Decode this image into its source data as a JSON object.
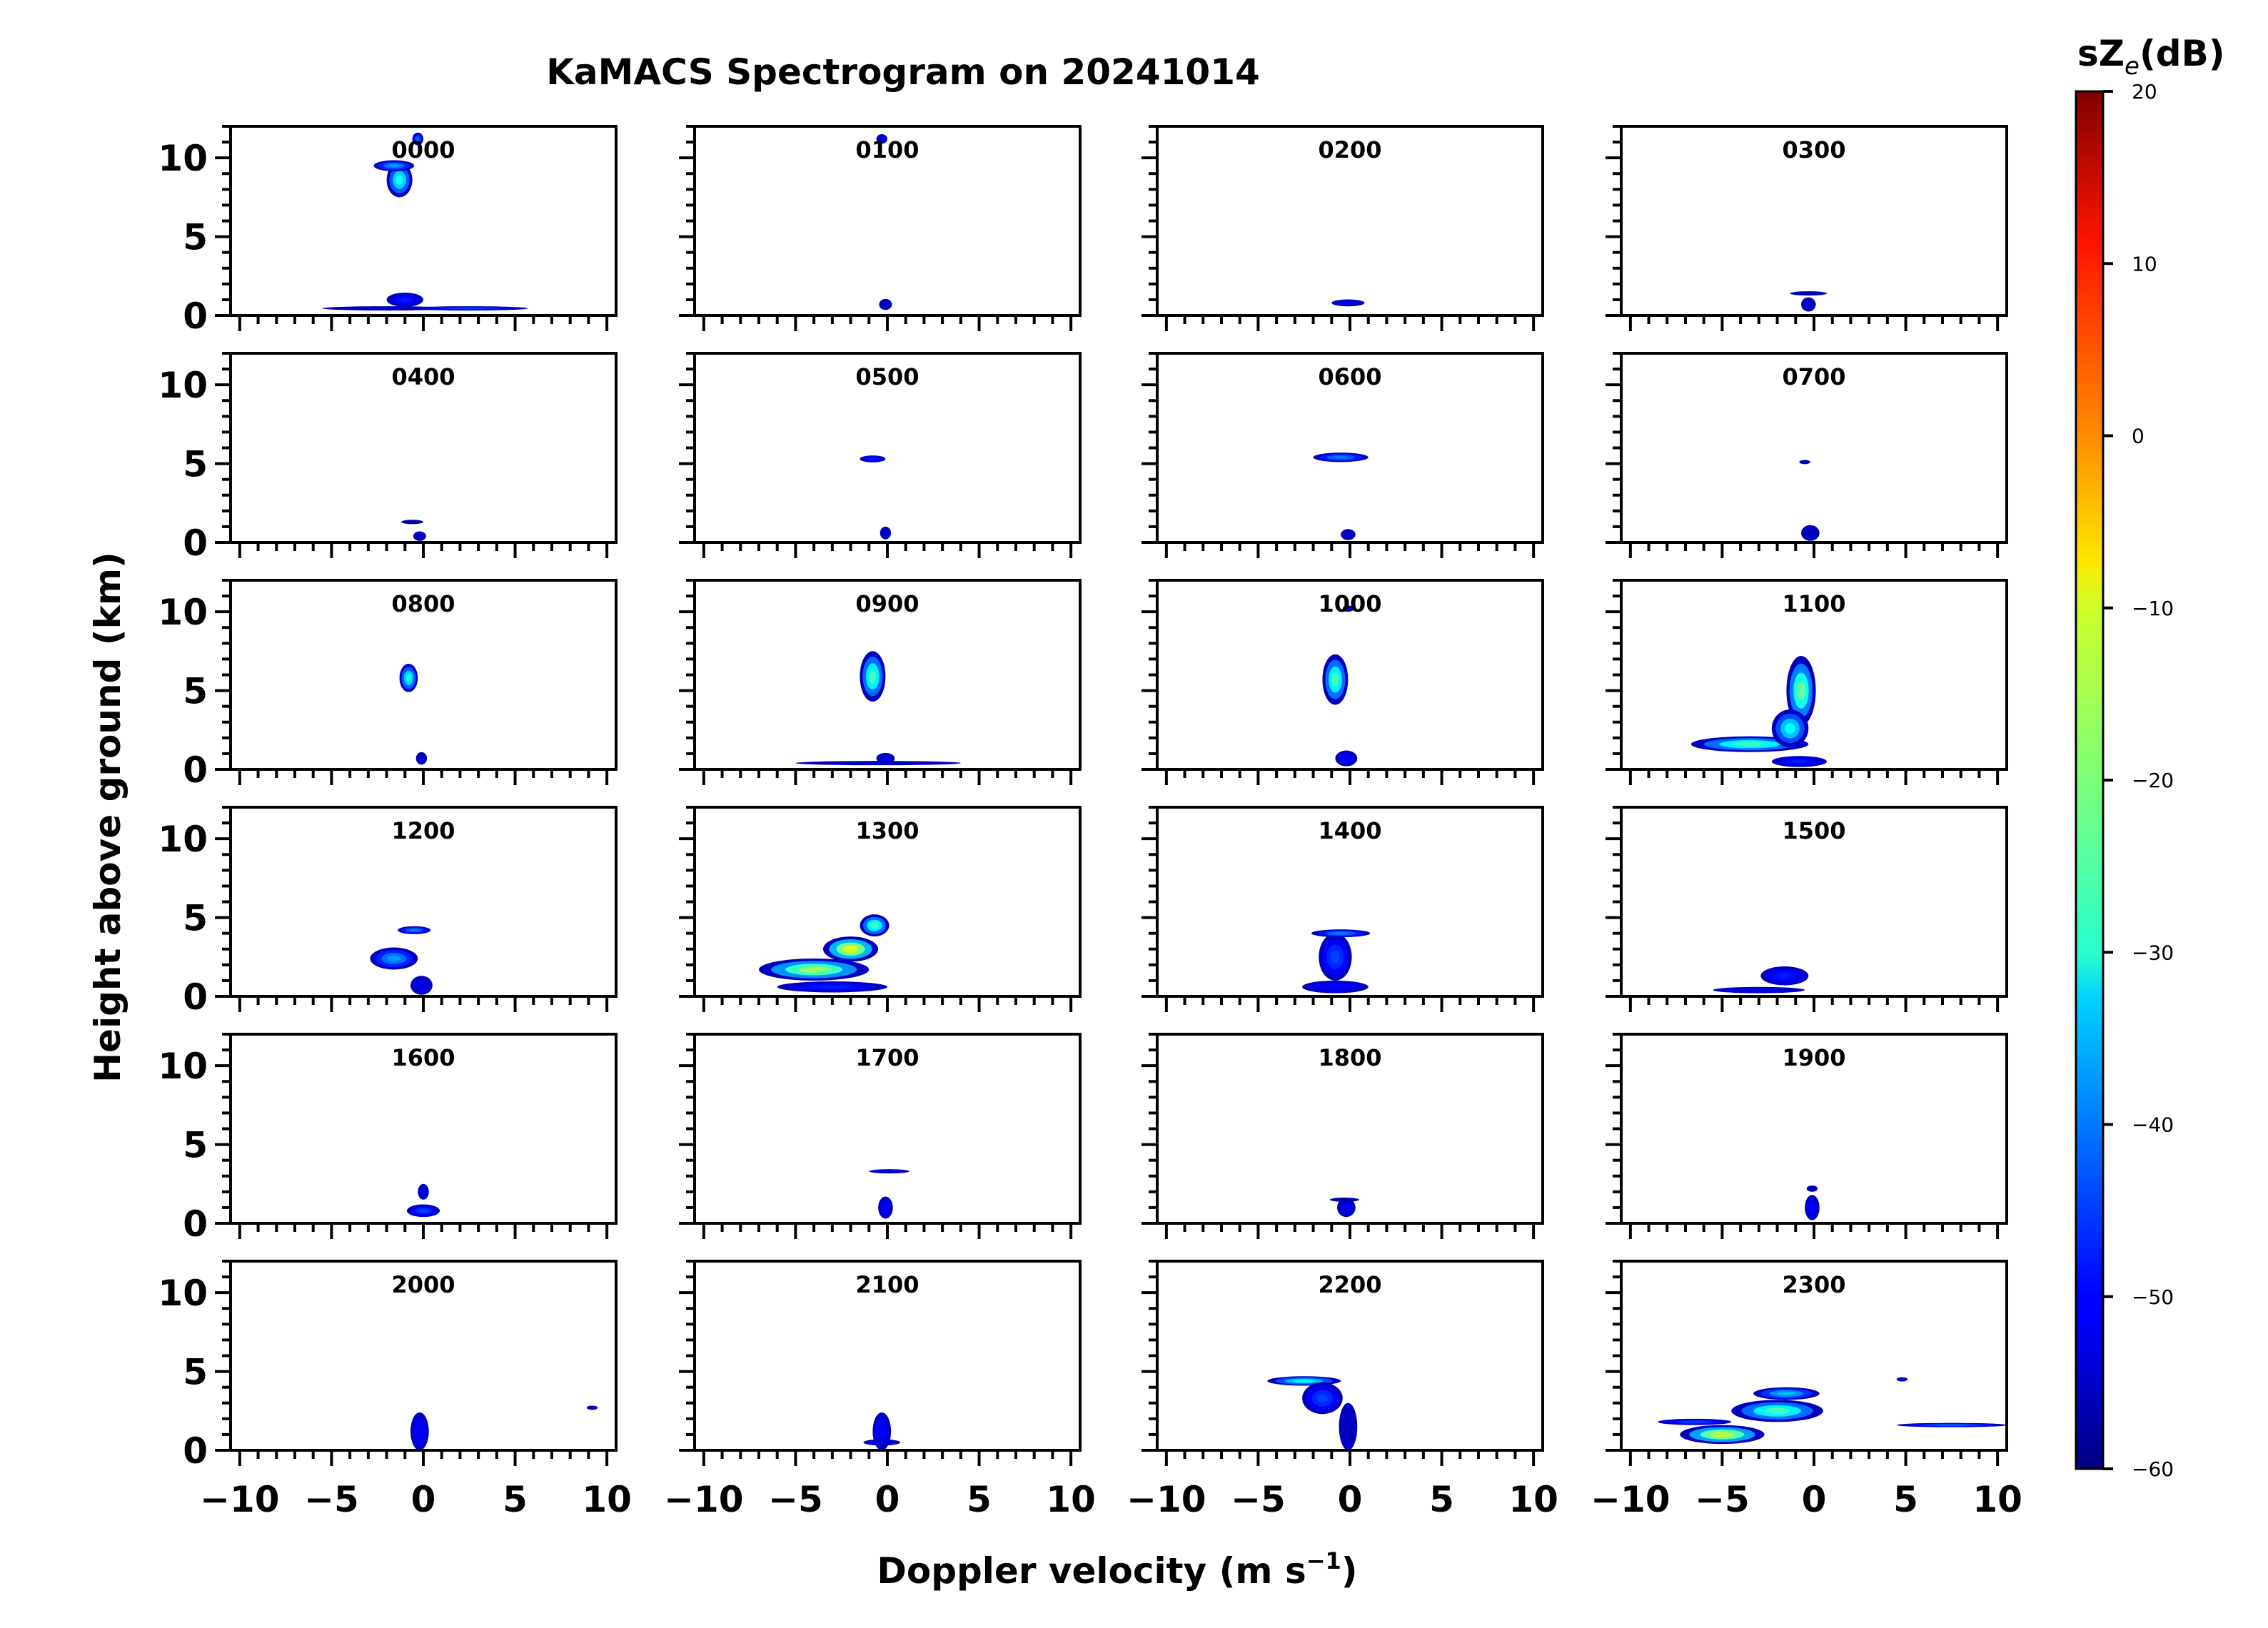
{
  "chart_data": {
    "type": "heatmap",
    "title": "KaMACS Spectrogram on 20241014",
    "xlabel": "Doppler velocity (m s",
    "xlabel_sup": "−1",
    "xlabel_end": ")",
    "ylabel": "Height above ground (km)",
    "xlim": [
      -10.5,
      10.5
    ],
    "ylim": [
      0,
      12
    ],
    "x_ticks": [
      -10,
      -5,
      0,
      5,
      10
    ],
    "x_tick_labels": [
      "−10",
      "−5",
      "0",
      "5",
      "10"
    ],
    "y_ticks": [
      0,
      5,
      10
    ],
    "y_tick_labels": [
      "0",
      "5",
      "10"
    ],
    "colorbar": {
      "label": "sZ",
      "label_sub": "e",
      "label_unit": "(dB)",
      "range": [
        -60,
        20
      ],
      "ticks": [
        20,
        10,
        0,
        -10,
        -20,
        -30,
        -40,
        -50,
        -60
      ],
      "tick_labels": [
        "20",
        "10",
        "0",
        "−10",
        "−20",
        "−30",
        "−40",
        "−50",
        "−60"
      ]
    },
    "panels": [
      {
        "label": "0000",
        "features": [
          {
            "v": -1.3,
            "h": 8.6,
            "dv": 0.7,
            "dh": 1.1,
            "z": -28
          },
          {
            "v": -1.6,
            "h": 9.5,
            "dv": 1.1,
            "dh": 0.35,
            "z": -38
          },
          {
            "v": -0.3,
            "h": 11.2,
            "dv": 0.3,
            "dh": 0.4,
            "z": -42
          },
          {
            "v": -1.0,
            "h": 1.0,
            "dv": 1.0,
            "dh": 0.45,
            "z": -48
          },
          {
            "v": -2.0,
            "h": 0.45,
            "dv": 3.5,
            "dh": 0.12,
            "z": -55
          },
          {
            "v": 2.5,
            "h": 0.45,
            "dv": 3.2,
            "dh": 0.1,
            "z": -45
          }
        ]
      },
      {
        "label": "0100",
        "features": [
          {
            "v": -0.1,
            "h": 0.7,
            "dv": 0.35,
            "dh": 0.35,
            "z": -55
          },
          {
            "v": -0.3,
            "h": 11.2,
            "dv": 0.3,
            "dh": 0.3,
            "z": -52
          }
        ]
      },
      {
        "label": "0200",
        "features": [
          {
            "v": -0.1,
            "h": 0.8,
            "dv": 0.9,
            "dh": 0.22,
            "z": -52
          }
        ]
      },
      {
        "label": "0300",
        "features": [
          {
            "v": -0.3,
            "h": 0.7,
            "dv": 0.4,
            "dh": 0.45,
            "z": -55
          },
          {
            "v": -0.3,
            "h": 1.4,
            "dv": 1.0,
            "dh": 0.08,
            "z": -58
          }
        ]
      },
      {
        "label": "0400",
        "features": [
          {
            "v": -0.2,
            "h": 0.4,
            "dv": 0.35,
            "dh": 0.3,
            "z": -55
          },
          {
            "v": -0.6,
            "h": 1.3,
            "dv": 0.6,
            "dh": 0.08,
            "z": -58
          }
        ]
      },
      {
        "label": "0500",
        "features": [
          {
            "v": -0.8,
            "h": 5.3,
            "dv": 0.7,
            "dh": 0.22,
            "z": -48
          },
          {
            "v": -0.1,
            "h": 0.6,
            "dv": 0.3,
            "dh": 0.4,
            "z": -55
          }
        ]
      },
      {
        "label": "0600",
        "features": [
          {
            "v": -0.5,
            "h": 5.4,
            "dv": 1.5,
            "dh": 0.3,
            "z": -40
          },
          {
            "v": -0.1,
            "h": 0.5,
            "dv": 0.4,
            "dh": 0.35,
            "z": -55
          }
        ]
      },
      {
        "label": "0700",
        "features": [
          {
            "v": -0.5,
            "h": 5.1,
            "dv": 0.3,
            "dh": 0.1,
            "z": -55
          },
          {
            "v": -0.2,
            "h": 0.6,
            "dv": 0.5,
            "dh": 0.5,
            "z": -55
          }
        ]
      },
      {
        "label": "0800",
        "features": [
          {
            "v": -0.8,
            "h": 5.8,
            "dv": 0.5,
            "dh": 0.9,
            "z": -28
          },
          {
            "v": -0.1,
            "h": 0.7,
            "dv": 0.3,
            "dh": 0.4,
            "z": -55
          }
        ]
      },
      {
        "label": "0900",
        "features": [
          {
            "v": -0.8,
            "h": 5.9,
            "dv": 0.7,
            "dh": 1.6,
            "z": -25
          },
          {
            "v": -0.1,
            "h": 0.7,
            "dv": 0.5,
            "dh": 0.35,
            "z": -52
          },
          {
            "v": -0.5,
            "h": 0.4,
            "dv": 4.5,
            "dh": 0.08,
            "z": -55
          }
        ]
      },
      {
        "label": "1000",
        "features": [
          {
            "v": -0.8,
            "h": 5.7,
            "dv": 0.7,
            "dh": 1.6,
            "z": -25
          },
          {
            "v": -0.1,
            "h": 10.2,
            "dv": 0.3,
            "dh": 0.2,
            "z": -55
          },
          {
            "v": -0.2,
            "h": 0.7,
            "dv": 0.6,
            "dh": 0.5,
            "z": -50
          }
        ]
      },
      {
        "label": "1100",
        "features": [
          {
            "v": -0.7,
            "h": 5.0,
            "dv": 0.8,
            "dh": 2.2,
            "z": -22
          },
          {
            "v": -3.5,
            "h": 1.6,
            "dv": 3.2,
            "dh": 0.5,
            "z": -25
          },
          {
            "v": -1.3,
            "h": 2.6,
            "dv": 1.0,
            "dh": 1.2,
            "z": -30
          },
          {
            "v": -0.8,
            "h": 0.5,
            "dv": 1.5,
            "dh": 0.35,
            "z": -48
          }
        ]
      },
      {
        "label": "1200",
        "features": [
          {
            "v": -1.6,
            "h": 2.4,
            "dv": 1.3,
            "dh": 0.7,
            "z": -38
          },
          {
            "v": -0.5,
            "h": 4.2,
            "dv": 0.9,
            "dh": 0.25,
            "z": -40
          },
          {
            "v": -0.1,
            "h": 0.7,
            "dv": 0.6,
            "dh": 0.6,
            "z": -52
          }
        ]
      },
      {
        "label": "1300",
        "features": [
          {
            "v": -4.0,
            "h": 1.7,
            "dv": 3.0,
            "dh": 0.7,
            "z": -18
          },
          {
            "v": -2.0,
            "h": 3.0,
            "dv": 1.5,
            "dh": 0.8,
            "z": -12
          },
          {
            "v": -0.7,
            "h": 4.5,
            "dv": 0.8,
            "dh": 0.7,
            "z": -25
          },
          {
            "v": -3.0,
            "h": 0.6,
            "dv": 3.0,
            "dh": 0.35,
            "z": -48
          }
        ]
      },
      {
        "label": "1400",
        "features": [
          {
            "v": -0.8,
            "h": 2.5,
            "dv": 0.9,
            "dh": 1.5,
            "z": -45
          },
          {
            "v": -0.5,
            "h": 4.0,
            "dv": 1.6,
            "dh": 0.25,
            "z": -40
          },
          {
            "v": -0.8,
            "h": 0.6,
            "dv": 1.8,
            "dh": 0.4,
            "z": -50
          }
        ]
      },
      {
        "label": "1500",
        "features": [
          {
            "v": -1.6,
            "h": 1.3,
            "dv": 1.3,
            "dh": 0.6,
            "z": -48
          },
          {
            "v": -3.0,
            "h": 0.4,
            "dv": 2.5,
            "dh": 0.2,
            "z": -52
          }
        ]
      },
      {
        "label": "1600",
        "features": [
          {
            "v": 0.0,
            "h": 0.8,
            "dv": 0.9,
            "dh": 0.4,
            "z": -45
          },
          {
            "v": 0.0,
            "h": 2.0,
            "dv": 0.3,
            "dh": 0.5,
            "z": -52
          }
        ]
      },
      {
        "label": "1700",
        "features": [
          {
            "v": 0.1,
            "h": 3.3,
            "dv": 1.1,
            "dh": 0.08,
            "z": -52
          },
          {
            "v": -0.1,
            "h": 1.0,
            "dv": 0.4,
            "dh": 0.7,
            "z": -50
          }
        ]
      },
      {
        "label": "1800",
        "features": [
          {
            "v": -0.2,
            "h": 1.0,
            "dv": 0.5,
            "dh": 0.6,
            "z": -52
          },
          {
            "v": -0.3,
            "h": 1.5,
            "dv": 0.8,
            "dh": 0.08,
            "z": -58
          }
        ]
      },
      {
        "label": "1900",
        "features": [
          {
            "v": -0.1,
            "h": 1.0,
            "dv": 0.4,
            "dh": 0.8,
            "z": -50
          },
          {
            "v": -0.1,
            "h": 2.2,
            "dv": 0.3,
            "dh": 0.2,
            "z": -55
          }
        ]
      },
      {
        "label": "2000",
        "features": [
          {
            "v": -0.2,
            "h": 1.2,
            "dv": 0.5,
            "dh": 1.2,
            "z": -50
          },
          {
            "v": 9.2,
            "h": 2.7,
            "dv": 0.3,
            "dh": 0.1,
            "z": -55
          }
        ]
      },
      {
        "label": "2100",
        "features": [
          {
            "v": -0.3,
            "h": 1.2,
            "dv": 0.5,
            "dh": 1.2,
            "z": -50
          },
          {
            "v": -0.3,
            "h": 0.5,
            "dv": 1.0,
            "dh": 0.2,
            "z": -52
          }
        ]
      },
      {
        "label": "2200",
        "features": [
          {
            "v": -2.5,
            "h": 4.4,
            "dv": 2.0,
            "dh": 0.3,
            "z": -30
          },
          {
            "v": -1.5,
            "h": 3.3,
            "dv": 1.1,
            "dh": 1.0,
            "z": -45
          },
          {
            "v": -0.1,
            "h": 1.5,
            "dv": 0.5,
            "dh": 1.5,
            "z": -55
          }
        ]
      },
      {
        "label": "2300",
        "features": [
          {
            "v": -5.0,
            "h": 1.0,
            "dv": 2.3,
            "dh": 0.6,
            "z": -15
          },
          {
            "v": -2.0,
            "h": 2.5,
            "dv": 2.5,
            "dh": 0.7,
            "z": -25
          },
          {
            "v": -1.5,
            "h": 3.6,
            "dv": 1.8,
            "dh": 0.4,
            "z": -35
          },
          {
            "v": -6.5,
            "h": 1.8,
            "dv": 2.0,
            "dh": 0.2,
            "z": -45
          },
          {
            "v": 7.5,
            "h": 1.6,
            "dv": 3.0,
            "dh": 0.1,
            "z": -42
          },
          {
            "v": 4.8,
            "h": 4.5,
            "dv": 0.3,
            "dh": 0.08,
            "z": -55
          }
        ]
      }
    ]
  }
}
